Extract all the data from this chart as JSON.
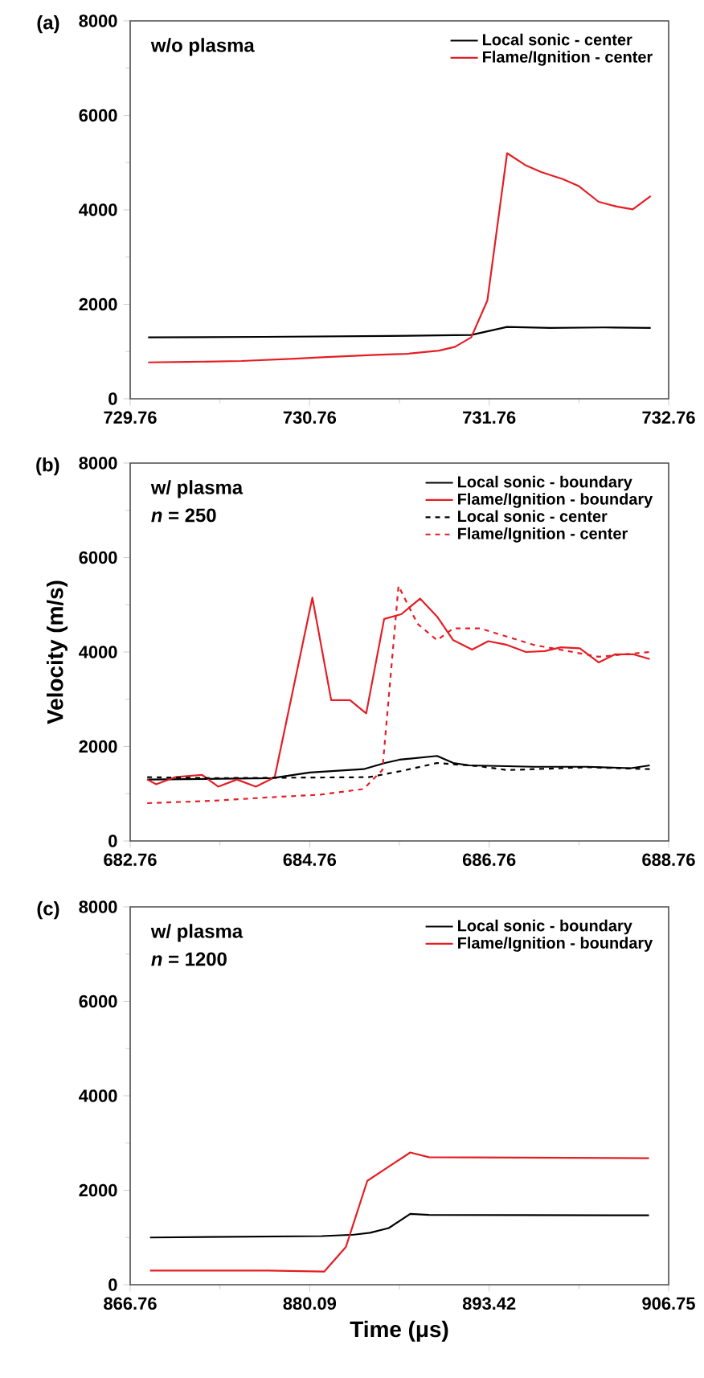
{
  "chart_data": [
    {
      "type": "line",
      "annotations": [
        "(a)",
        "w/o plasma"
      ],
      "xlim": [
        729.76,
        732.76
      ],
      "xticks": [
        729.76,
        730.76,
        731.76,
        732.76
      ],
      "ylim": [
        0,
        8000
      ],
      "yticks": [
        0,
        2000,
        4000,
        6000,
        8000
      ],
      "legend": "top right",
      "series": [
        {
          "name": "Local sonic - center",
          "color": "#000000",
          "line_style": "solid",
          "x": [
            729.86,
            730.5,
            731.2,
            731.66,
            731.86,
            732.1,
            732.4,
            732.66
          ],
          "values": [
            1300,
            1310,
            1330,
            1350,
            1520,
            1500,
            1510,
            1500
          ]
        },
        {
          "name": "Flame/Ignition - center",
          "color": "#e31e24",
          "line_style": "solid",
          "x": [
            729.86,
            730.08,
            730.38,
            730.68,
            730.83,
            731.13,
            731.3,
            731.48,
            731.57,
            731.66,
            731.75,
            731.86,
            731.96,
            732.05,
            732.17,
            732.26,
            732.37,
            732.47,
            732.56,
            732.66
          ],
          "values": [
            770,
            780,
            800,
            850,
            880,
            930,
            950,
            1020,
            1100,
            1300,
            2080,
            5200,
            4950,
            4800,
            4650,
            4500,
            4170,
            4070,
            4010,
            4290
          ]
        }
      ]
    },
    {
      "type": "line",
      "annotations": [
        "(b)",
        "w/ plasma",
        "*n* = 250"
      ],
      "ylabel": "Velocity (m/s)",
      "xlim": [
        682.76,
        688.76
      ],
      "xticks": [
        682.76,
        684.76,
        686.76,
        688.76
      ],
      "ylim": [
        0,
        8000
      ],
      "yticks": [
        0,
        2000,
        4000,
        6000,
        8000
      ],
      "legend": "top right",
      "series": [
        {
          "name": "Local sonic - boundary",
          "color": "#000000",
          "line_style": "solid",
          "x": [
            682.95,
            684.34,
            684.76,
            685.36,
            685.6,
            685.76,
            686.18,
            686.36,
            686.54,
            687.26,
            687.86,
            688.34,
            688.55
          ],
          "values": [
            1300,
            1330,
            1450,
            1520,
            1650,
            1720,
            1800,
            1650,
            1600,
            1570,
            1570,
            1540,
            1600
          ]
        },
        {
          "name": "Flame/Ignition - boundary",
          "color": "#e31e24",
          "line_style": "solid",
          "x": [
            682.95,
            683.05,
            683.26,
            683.56,
            683.74,
            683.95,
            684.16,
            684.37,
            684.79,
            685.0,
            685.21,
            685.39,
            685.59,
            685.78,
            685.99,
            686.18,
            686.36,
            686.57,
            686.75,
            686.96,
            687.17,
            687.38,
            687.56,
            687.77,
            687.98,
            688.16,
            688.37,
            688.55
          ],
          "values": [
            1300,
            1200,
            1350,
            1400,
            1150,
            1300,
            1150,
            1350,
            5150,
            2980,
            2980,
            2700,
            4700,
            4800,
            5130,
            4750,
            4250,
            4050,
            4230,
            4150,
            4000,
            4020,
            4100,
            4080,
            3780,
            3950,
            3950,
            3850
          ]
        },
        {
          "name": "Local sonic - center",
          "color": "#000000",
          "line_style": "dashed",
          "x": [
            682.95,
            683.68,
            685.42,
            685.78,
            686.18,
            686.66,
            686.96,
            687.86,
            688.55
          ],
          "values": [
            1350,
            1330,
            1350,
            1480,
            1650,
            1580,
            1500,
            1560,
            1520
          ]
        },
        {
          "name": "Flame/Ignition - center",
          "color": "#e31e24",
          "line_style": "dashed",
          "x": [
            682.95,
            683.68,
            684.28,
            684.88,
            685.36,
            685.57,
            685.75,
            685.96,
            686.18,
            686.36,
            686.66,
            687.26,
            687.98,
            688.55
          ],
          "values": [
            800,
            850,
            920,
            980,
            1100,
            1500,
            5400,
            4600,
            4250,
            4500,
            4500,
            4150,
            3900,
            4000
          ]
        }
      ]
    },
    {
      "type": "line",
      "annotations": [
        "(c)",
        "w/ plasma",
        "*n* = 1200"
      ],
      "xlabel": "Time (μs)",
      "xlim": [
        866.76,
        906.75
      ],
      "xticks": [
        866.76,
        880.09,
        893.42,
        906.75
      ],
      "ylim": [
        0,
        8000
      ],
      "yticks": [
        0,
        2000,
        4000,
        6000,
        8000
      ],
      "legend": "top right",
      "series": [
        {
          "name": "Local sonic - boundary",
          "color": "#000000",
          "line_style": "solid",
          "x": [
            868.23,
            880.98,
            883.37,
            884.57,
            885.96,
            887.56,
            888.95,
            905.29
          ],
          "values": [
            1000,
            1030,
            1060,
            1100,
            1200,
            1500,
            1480,
            1470
          ]
        },
        {
          "name": "Flame/Ignition - boundary",
          "color": "#e31e24",
          "line_style": "solid",
          "x": [
            868.23,
            876.99,
            881.18,
            882.78,
            884.37,
            885.96,
            887.56,
            888.95,
            905.29
          ],
          "values": [
            300,
            300,
            280,
            800,
            2200,
            2500,
            2800,
            2700,
            2680
          ]
        }
      ]
    }
  ]
}
